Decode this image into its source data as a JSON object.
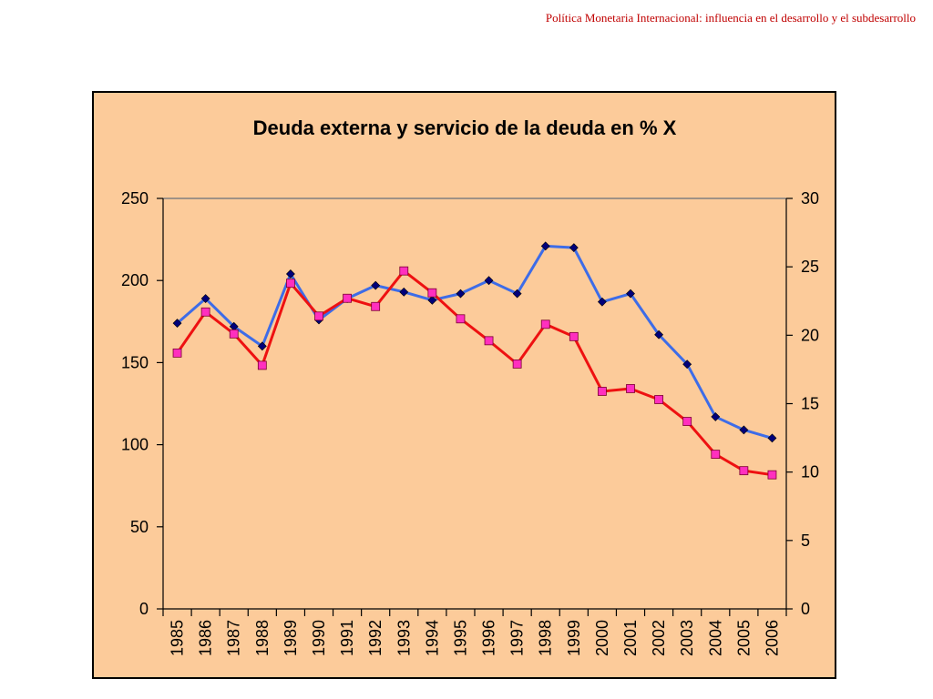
{
  "header": {
    "text": "Política Monetaria Internacional: influencia en el desarrollo y el subdesarrollo",
    "color": "#c00000"
  },
  "chart_data": {
    "type": "line",
    "title": "Deuda externa y servicio de la deuda en % X",
    "background": "#fccb9a",
    "grid": false,
    "legend": "none",
    "categories": [
      "1985",
      "1986",
      "1987",
      "1988",
      "1989",
      "1990",
      "1991",
      "1992",
      "1993",
      "1994",
      "1995",
      "1996",
      "1997",
      "1998",
      "1999",
      "2000",
      "2001",
      "2002",
      "2003",
      "2004",
      "2005",
      "2006"
    ],
    "y_left": {
      "min": 0,
      "max": 250,
      "ticks": [
        "0",
        "50",
        "100",
        "150",
        "200",
        "250"
      ]
    },
    "y_right": {
      "min": 0,
      "max": 30,
      "ticks": [
        "0",
        "5",
        "10",
        "15",
        "20",
        "25",
        "30"
      ]
    },
    "series": [
      {
        "axis": "left",
        "color": "#3d6ce8",
        "marker": "diamond",
        "marker_color": "#00007a",
        "values": [
          174,
          189,
          172,
          160,
          204,
          176,
          189,
          197,
          193,
          188,
          192,
          200,
          192,
          221,
          220,
          187,
          192,
          167,
          149,
          117,
          109,
          104
        ]
      },
      {
        "axis": "right",
        "color": "#ee1111",
        "marker": "square",
        "marker_color": "#ff2fbf",
        "values": [
          18.7,
          21.7,
          20.1,
          17.8,
          23.8,
          21.4,
          22.7,
          22.1,
          24.7,
          23.1,
          21.2,
          19.6,
          17.9,
          20.8,
          19.9,
          15.9,
          16.1,
          15.3,
          13.7,
          11.3,
          10.1,
          9.8
        ]
      }
    ]
  }
}
